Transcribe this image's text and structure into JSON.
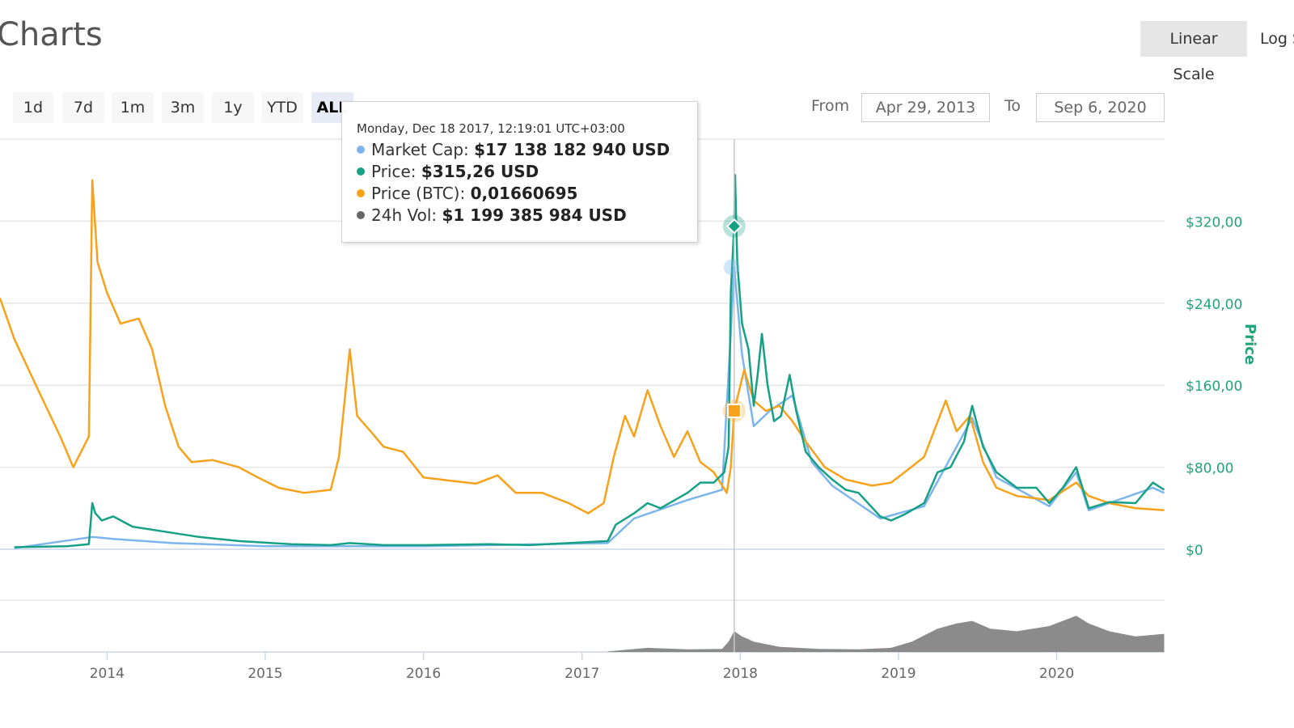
{
  "header": {
    "title": "Charts"
  },
  "scale": {
    "linear_label": "Linear Scale",
    "log_label": "Log Scale"
  },
  "ranges": [
    {
      "label": "1d",
      "active": false
    },
    {
      "label": "7d",
      "active": false
    },
    {
      "label": "1m",
      "active": false
    },
    {
      "label": "3m",
      "active": false
    },
    {
      "label": "1y",
      "active": false
    },
    {
      "label": "YTD",
      "active": false
    },
    {
      "label": "ALL",
      "active": true
    }
  ],
  "dates": {
    "from_label": "From",
    "from_value": "Apr 29, 2013",
    "to_label": "To",
    "to_value": "Sep 6, 2020"
  },
  "tooltip": {
    "header": "Monday, Dec 18 2017, 12:19:01 UTC+03:00",
    "rows": [
      {
        "label": "Market Cap:",
        "value": "$17 138 182 940 USD",
        "color": "#7cb5ec"
      },
      {
        "label": "Price:",
        "value": "$315,26 USD",
        "color": "#16a085"
      },
      {
        "label": "Price (BTC):",
        "value": "0,01660695",
        "color": "#f7a21b"
      },
      {
        "label": "24h Vol:",
        "value": "$1 199 385 984 USD",
        "color": "#666666"
      }
    ]
  },
  "colors": {
    "price": "#16a085",
    "market_cap": "#7cb5ec",
    "price_btc": "#f7a21b",
    "volume": "#777777",
    "axis_text": "#21a47a",
    "grid": "#e6e6e6"
  },
  "chart_data": {
    "type": "line",
    "y_axis_title": "Price",
    "x_ticks": [
      "2014",
      "2015",
      "2016",
      "2017",
      "2018",
      "2019",
      "2020"
    ],
    "y_ticks": [
      "$0",
      "$80,00",
      "$160,00",
      "$240,00",
      "$320,00"
    ],
    "ylim": [
      0,
      400
    ],
    "grid": true,
    "hover_date": "2017-12-18",
    "series": [
      {
        "name": "Price",
        "points": [
          [
            "2013-06-01",
            2
          ],
          [
            "2013-10-01",
            3
          ],
          [
            "2013-11-20",
            5
          ],
          [
            "2013-11-28",
            45
          ],
          [
            "2013-12-05",
            35
          ],
          [
            "2013-12-20",
            28
          ],
          [
            "2014-01-15",
            32
          ],
          [
            "2014-03-01",
            22
          ],
          [
            "2014-05-01",
            18
          ],
          [
            "2014-08-01",
            12
          ],
          [
            "2014-11-01",
            8
          ],
          [
            "2015-03-01",
            5
          ],
          [
            "2015-06-01",
            4
          ],
          [
            "2015-07-15",
            6
          ],
          [
            "2015-10-01",
            4
          ],
          [
            "2016-01-01",
            4
          ],
          [
            "2016-06-01",
            5
          ],
          [
            "2016-09-01",
            4
          ],
          [
            "2016-12-01",
            6
          ],
          [
            "2017-03-01",
            8
          ],
          [
            "2017-03-20",
            24
          ],
          [
            "2017-05-01",
            35
          ],
          [
            "2017-06-01",
            45
          ],
          [
            "2017-07-01",
            40
          ],
          [
            "2017-09-01",
            55
          ],
          [
            "2017-10-01",
            65
          ],
          [
            "2017-11-01",
            65
          ],
          [
            "2017-11-25",
            75
          ],
          [
            "2017-12-05",
            100
          ],
          [
            "2017-12-10",
            250
          ],
          [
            "2017-12-18",
            315
          ],
          [
            "2017-12-20",
            365
          ],
          [
            "2017-12-25",
            280
          ],
          [
            "2018-01-05",
            220
          ],
          [
            "2018-01-20",
            195
          ],
          [
            "2018-02-01",
            140
          ],
          [
            "2018-02-10",
            170
          ],
          [
            "2018-02-20",
            210
          ],
          [
            "2018-03-05",
            160
          ],
          [
            "2018-03-20",
            125
          ],
          [
            "2018-04-05",
            130
          ],
          [
            "2018-04-25",
            170
          ],
          [
            "2018-05-10",
            135
          ],
          [
            "2018-06-01",
            95
          ],
          [
            "2018-07-01",
            80
          ],
          [
            "2018-08-01",
            68
          ],
          [
            "2018-09-01",
            58
          ],
          [
            "2018-10-01",
            55
          ],
          [
            "2018-11-20",
            32
          ],
          [
            "2018-12-15",
            28
          ],
          [
            "2019-01-15",
            34
          ],
          [
            "2019-03-01",
            45
          ],
          [
            "2019-04-01",
            75
          ],
          [
            "2019-05-01",
            80
          ],
          [
            "2019-06-01",
            105
          ],
          [
            "2019-06-20",
            140
          ],
          [
            "2019-07-15",
            100
          ],
          [
            "2019-08-15",
            75
          ],
          [
            "2019-10-01",
            60
          ],
          [
            "2019-11-15",
            60
          ],
          [
            "2019-12-15",
            45
          ],
          [
            "2020-01-15",
            60
          ],
          [
            "2020-02-15",
            80
          ],
          [
            "2020-03-15",
            40
          ],
          [
            "2020-05-01",
            46
          ],
          [
            "2020-07-01",
            45
          ],
          [
            "2020-08-10",
            65
          ],
          [
            "2020-09-05",
            58
          ]
        ]
      },
      {
        "name": "Market Cap",
        "points": [
          [
            "2013-06-01",
            1
          ],
          [
            "2013-11-28",
            12
          ],
          [
            "2014-01-15",
            10
          ],
          [
            "2014-06-01",
            6
          ],
          [
            "2015-01-01",
            3
          ],
          [
            "2016-01-01",
            3
          ],
          [
            "2017-03-01",
            6
          ],
          [
            "2017-05-01",
            30
          ],
          [
            "2017-09-01",
            48
          ],
          [
            "2017-11-20",
            58
          ],
          [
            "2017-12-10",
            210
          ],
          [
            "2017-12-18",
            275
          ],
          [
            "2018-01-05",
            190
          ],
          [
            "2018-02-01",
            120
          ],
          [
            "2018-03-10",
            135
          ],
          [
            "2018-05-01",
            150
          ],
          [
            "2018-06-15",
            85
          ],
          [
            "2018-08-01",
            62
          ],
          [
            "2018-11-20",
            30
          ],
          [
            "2019-03-01",
            42
          ],
          [
            "2019-06-20",
            128
          ],
          [
            "2019-08-15",
            70
          ],
          [
            "2019-12-15",
            42
          ],
          [
            "2020-02-15",
            75
          ],
          [
            "2020-03-15",
            38
          ],
          [
            "2020-08-10",
            60
          ],
          [
            "2020-09-05",
            55
          ]
        ]
      },
      {
        "name": "Price (BTC)",
        "points": [
          [
            "2013-04-29",
            245
          ],
          [
            "2013-06-01",
            205
          ],
          [
            "2013-08-01",
            150
          ],
          [
            "2013-09-15",
            110
          ],
          [
            "2013-10-15",
            80
          ],
          [
            "2013-11-20",
            110
          ],
          [
            "2013-11-28",
            360
          ],
          [
            "2013-12-10",
            280
          ],
          [
            "2014-01-01",
            250
          ],
          [
            "2014-02-01",
            220
          ],
          [
            "2014-03-15",
            225
          ],
          [
            "2014-04-15",
            195
          ],
          [
            "2014-05-15",
            140
          ],
          [
            "2014-06-15",
            100
          ],
          [
            "2014-07-15",
            85
          ],
          [
            "2014-09-01",
            87
          ],
          [
            "2014-11-01",
            80
          ],
          [
            "2014-12-15",
            70
          ],
          [
            "2015-02-01",
            60
          ],
          [
            "2015-04-01",
            55
          ],
          [
            "2015-06-01",
            58
          ],
          [
            "2015-06-20",
            90
          ],
          [
            "2015-07-15",
            195
          ],
          [
            "2015-08-01",
            130
          ],
          [
            "2015-09-01",
            115
          ],
          [
            "2015-10-01",
            100
          ],
          [
            "2015-11-15",
            95
          ],
          [
            "2016-01-01",
            70
          ],
          [
            "2016-03-01",
            67
          ],
          [
            "2016-05-01",
            64
          ],
          [
            "2016-06-20",
            72
          ],
          [
            "2016-08-01",
            55
          ],
          [
            "2016-10-01",
            55
          ],
          [
            "2016-12-01",
            45
          ],
          [
            "2017-01-15",
            35
          ],
          [
            "2017-02-20",
            45
          ],
          [
            "2017-03-15",
            90
          ],
          [
            "2017-04-10",
            130
          ],
          [
            "2017-05-01",
            110
          ],
          [
            "2017-06-01",
            155
          ],
          [
            "2017-07-01",
            120
          ],
          [
            "2017-08-01",
            90
          ],
          [
            "2017-09-01",
            115
          ],
          [
            "2017-10-01",
            85
          ],
          [
            "2017-11-01",
            75
          ],
          [
            "2017-12-01",
            55
          ],
          [
            "2017-12-10",
            80
          ],
          [
            "2017-12-18",
            135
          ],
          [
            "2018-01-10",
            175
          ],
          [
            "2018-02-01",
            145
          ],
          [
            "2018-03-01",
            135
          ],
          [
            "2018-04-01",
            140
          ],
          [
            "2018-05-01",
            125
          ],
          [
            "2018-06-01",
            105
          ],
          [
            "2018-07-15",
            80
          ],
          [
            "2018-09-01",
            68
          ],
          [
            "2018-11-01",
            62
          ],
          [
            "2018-12-15",
            65
          ],
          [
            "2019-01-15",
            75
          ],
          [
            "2019-03-01",
            90
          ],
          [
            "2019-04-20",
            145
          ],
          [
            "2019-05-15",
            115
          ],
          [
            "2019-06-15",
            130
          ],
          [
            "2019-07-15",
            85
          ],
          [
            "2019-08-15",
            60
          ],
          [
            "2019-10-01",
            52
          ],
          [
            "2019-12-15",
            48
          ],
          [
            "2020-02-15",
            65
          ],
          [
            "2020-03-15",
            52
          ],
          [
            "2020-05-01",
            45
          ],
          [
            "2020-07-01",
            40
          ],
          [
            "2020-09-05",
            38
          ]
        ]
      },
      {
        "name": "24h Vol",
        "points": [
          [
            "2017-03-01",
            1
          ],
          [
            "2017-06-01",
            8
          ],
          [
            "2017-09-01",
            5
          ],
          [
            "2017-11-20",
            6
          ],
          [
            "2017-12-05",
            20
          ],
          [
            "2017-12-18",
            40
          ],
          [
            "2018-01-05",
            30
          ],
          [
            "2018-02-01",
            20
          ],
          [
            "2018-04-01",
            10
          ],
          [
            "2018-07-01",
            6
          ],
          [
            "2018-10-01",
            5
          ],
          [
            "2018-12-15",
            8
          ],
          [
            "2019-02-01",
            20
          ],
          [
            "2019-04-01",
            45
          ],
          [
            "2019-05-15",
            55
          ],
          [
            "2019-06-20",
            60
          ],
          [
            "2019-08-01",
            45
          ],
          [
            "2019-10-01",
            40
          ],
          [
            "2019-12-15",
            50
          ],
          [
            "2020-01-15",
            60
          ],
          [
            "2020-02-15",
            70
          ],
          [
            "2020-03-15",
            55
          ],
          [
            "2020-05-01",
            40
          ],
          [
            "2020-07-01",
            30
          ],
          [
            "2020-09-05",
            35
          ]
        ]
      }
    ]
  }
}
